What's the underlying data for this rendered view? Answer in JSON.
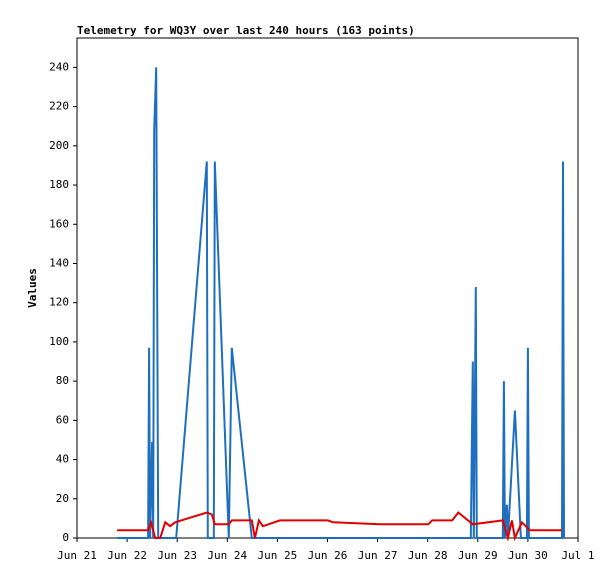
{
  "chart_data": {
    "type": "line",
    "title": "Telemetry for WQ3Y over last 240 hours (163 points)",
    "y_label": "Values",
    "xlim": [
      0,
      10
    ],
    "xticks": [
      {
        "value": 0,
        "label": "Jun 21"
      },
      {
        "value": 1,
        "label": "Jun 22"
      },
      {
        "value": 2,
        "label": "Jun 23"
      },
      {
        "value": 3,
        "label": "Jun 24"
      },
      {
        "value": 4,
        "label": "Jun 25"
      },
      {
        "value": 5,
        "label": "Jun 26"
      },
      {
        "value": 6,
        "label": "Jun 27"
      },
      {
        "value": 7,
        "label": "Jun 28"
      },
      {
        "value": 8,
        "label": "Jun 29"
      },
      {
        "value": 9,
        "label": "Jun 30"
      },
      {
        "value": 10,
        "label": "Jul 1"
      }
    ],
    "ylim": [
      0,
      255
    ],
    "yticks": [
      0,
      20,
      40,
      60,
      80,
      100,
      120,
      140,
      160,
      180,
      200,
      220,
      240
    ],
    "series": [
      {
        "color": "#1f6fbf",
        "x": [
          0.8,
          1.42,
          1.44,
          1.46,
          1.5,
          1.52,
          1.54,
          1.58,
          1.6,
          1.62,
          1.98,
          2.59,
          2.61,
          2.73,
          2.75,
          3.03,
          3.09,
          3.49,
          7.86,
          7.9,
          7.92,
          7.96,
          7.98,
          8.5,
          8.52,
          8.54,
          8.58,
          8.6,
          8.74,
          8.86,
          8.98,
          9.0,
          9.02,
          9.68,
          9.7,
          9.72
        ],
        "values": [
          0,
          0,
          97,
          0,
          49,
          0,
          208,
          240,
          120,
          0,
          0,
          192,
          0,
          0,
          192,
          0,
          97,
          0,
          0,
          90,
          0,
          128,
          0,
          0,
          80,
          0,
          17,
          0,
          65,
          0,
          0,
          97,
          0,
          0,
          192,
          0
        ]
      },
      {
        "color": "#e00000",
        "x": [
          0.8,
          1.42,
          1.48,
          1.56,
          1.66,
          1.76,
          1.86,
          1.96,
          2.59,
          2.69,
          2.75,
          3.03,
          3.09,
          3.49,
          3.55,
          3.63,
          3.71,
          4.05,
          5.01,
          5.11,
          6.05,
          7.01,
          7.09,
          7.49,
          7.61,
          7.9,
          8.5,
          8.6,
          8.68,
          8.74,
          8.88,
          9.04,
          9.68
        ],
        "values": [
          4,
          4,
          8,
          0,
          0,
          8,
          6,
          8,
          13,
          12,
          7,
          7,
          9,
          9,
          0,
          9,
          6,
          9,
          9,
          8,
          7,
          7,
          9,
          9,
          13,
          7,
          9,
          0,
          9,
          0,
          8,
          4,
          4
        ]
      }
    ]
  }
}
